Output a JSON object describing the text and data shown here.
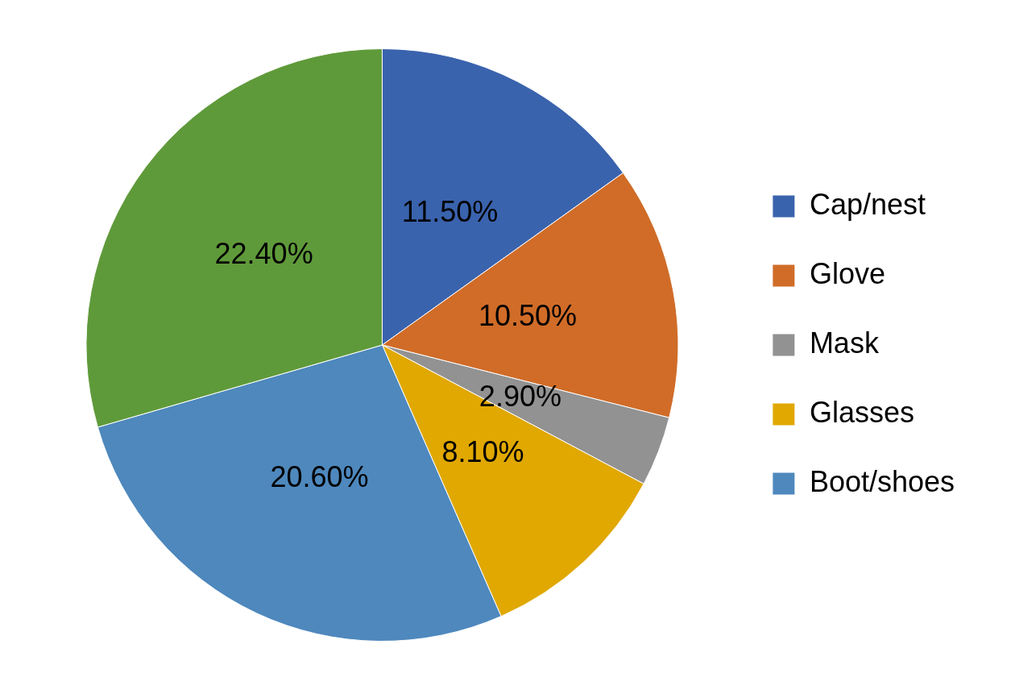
{
  "chart_data": {
    "type": "pie",
    "categories": [
      "Cap/nest",
      "Glove",
      "Mask",
      "Glasses",
      "Boot/shoes",
      null
    ],
    "values": [
      11.5,
      10.5,
      2.9,
      8.1,
      20.6,
      22.4
    ],
    "colors": [
      "#3a63ad",
      "#d06c28",
      "#929292",
      "#e0a800",
      "#4e88bd",
      "#5f9a3a"
    ],
    "value_labels": [
      "11.50%",
      "10.50%",
      "2.90%",
      "8.10%",
      "20.60%",
      "22.40%"
    ],
    "legend": "right"
  }
}
